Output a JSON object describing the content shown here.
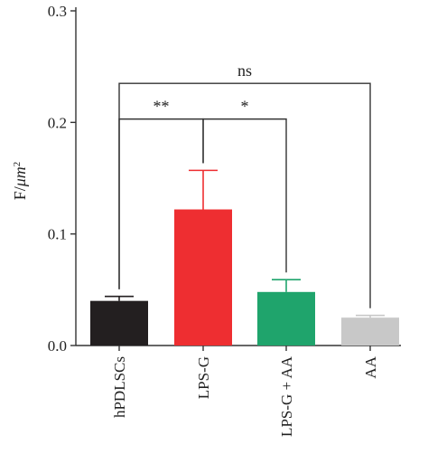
{
  "chart_data": {
    "type": "bar",
    "categories": [
      "hPDLSCs",
      "LPS-G",
      "LPS-G + AA",
      "AA"
    ],
    "values": [
      0.04,
      0.122,
      0.048,
      0.025
    ],
    "errors": [
      0.004,
      0.035,
      0.011,
      0.002
    ],
    "colors": [
      "#231f20",
      "#ee2e31",
      "#1fa46c",
      "#c8c8c8"
    ],
    "ylabel_base": "F/",
    "ylabel_unit": "μm",
    "ylabel_exp": "2",
    "ylim": [
      0,
      0.3
    ],
    "yticks": [
      0.0,
      0.1,
      0.2,
      0.3
    ],
    "ytick_labels": [
      "0.0",
      "0.1",
      "0.2",
      "0.3"
    ],
    "grid": false,
    "significance": [
      {
        "from": 0,
        "to": 3,
        "label": "ns",
        "level": 0.235
      },
      {
        "from": 0,
        "to": 1,
        "label": "**",
        "level": 0.203
      },
      {
        "from": 1,
        "to": 2,
        "label": "*",
        "level": 0.203
      }
    ]
  }
}
